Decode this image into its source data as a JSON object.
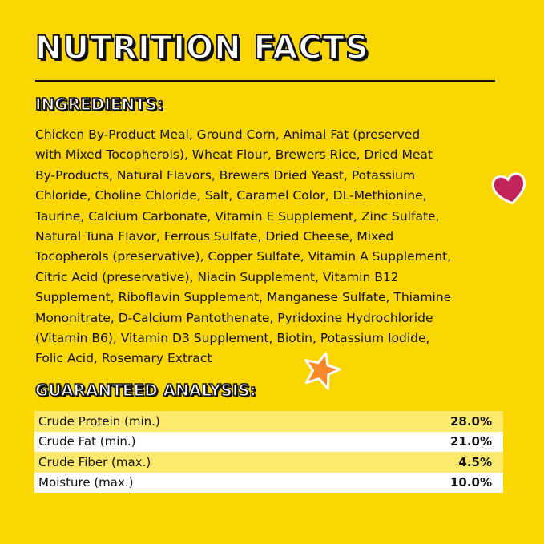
{
  "title": "NUTRITION FACTS",
  "ingredients": {
    "heading": "INGREDIENTS:",
    "lines": [
      "Chicken By-Product Meal, Ground Corn, Animal Fat (preserved",
      "with Mixed Tocopherols), Wheat Flour, Brewers Rice, Dried Meat",
      "By-Products, Natural Flavors, Brewers Dried Yeast, Potassium",
      "Chloride, Choline Chloride, Salt, Caramel Color, DL-Methionine,",
      "Taurine, Calcium Carbonate, Vitamin E Supplement, Zinc Sulfate,",
      "Natural Tuna Flavor, Ferrous Sulfate, Dried Cheese, Mixed",
      "Tocopherols (preservative), Copper Sulfate, Vitamin A Supplement,",
      "Citric Acid (preservative), Niacin Supplement, Vitamin B12",
      "Supplement, Riboflavin Supplement, Manganese Sulfate, Thiamine",
      "Mononitrate, D-Calcium Pantothenate, Pyridoxine Hydrochloride",
      "(Vitamin B6), Vitamin D3 Supplement, Biotin, Potassium Iodide,",
      "Folic Acid, Rosemary Extract"
    ]
  },
  "analysis": {
    "heading": "GUARANTEED ANALYSIS:",
    "rows": [
      {
        "label": "Crude Protein (min.)",
        "value": "28.0%"
      },
      {
        "label": "Crude Fat (min.)",
        "value": "21.0%"
      },
      {
        "label": "Crude Fiber (max.)",
        "value": "4.5%"
      },
      {
        "label": "Moisture (max.)",
        "value": "10.0%"
      }
    ]
  },
  "colors": {
    "background": "#fbd601",
    "heart": "#c2245a",
    "star": "#f7892b"
  },
  "decorations": [
    "heart-icon",
    "star-icon"
  ]
}
